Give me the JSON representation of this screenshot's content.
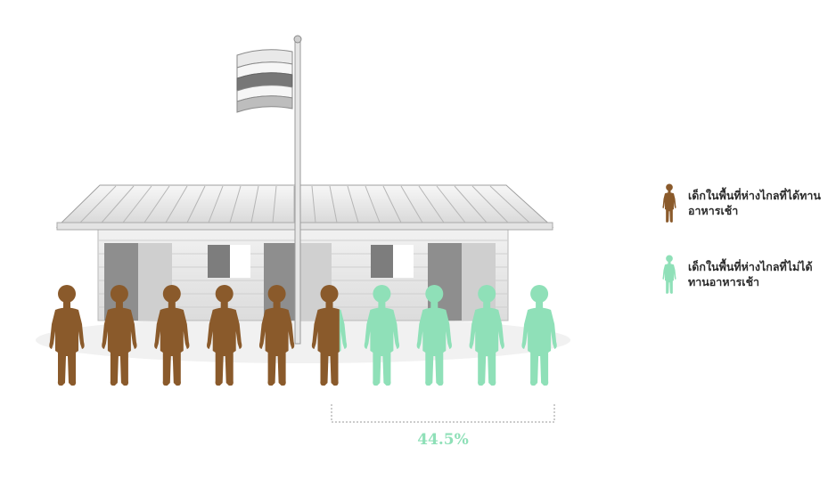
{
  "colors": {
    "fed": "#8a5a2b",
    "not_fed": "#8fe0b8",
    "bracket": "#9a9a9a",
    "pct_text": "#8fe0b8"
  },
  "legend": [
    {
      "key": "fed",
      "label": "เด็กในพื้นที่ห่างไกลที่ได้ทานอาหารเช้า",
      "color": "#8a5a2b",
      "icon": "child-figure-icon"
    },
    {
      "key": "not_fed",
      "label": "เด็กในพื้นที่ห่างไกลที่ไม่ได้ทานอาหารเช้า",
      "color": "#8fe0b8",
      "icon": "child-figure-icon"
    }
  ],
  "chart_data": {
    "type": "pictograph",
    "icon": "child-figure-icon",
    "icon_count": 10,
    "categories": [
      "เด็กในพื้นที่ห่างไกลที่ได้ทานอาหารเช้า",
      "เด็กในพื้นที่ห่างไกลที่ไม่ได้ทานอาหารเช้า"
    ],
    "values": [
      55.5,
      44.5
    ],
    "unit": "%",
    "highlight_label": "44.5%",
    "highlight_value": 44.5,
    "background_illustration": "school-building-with-flag"
  }
}
